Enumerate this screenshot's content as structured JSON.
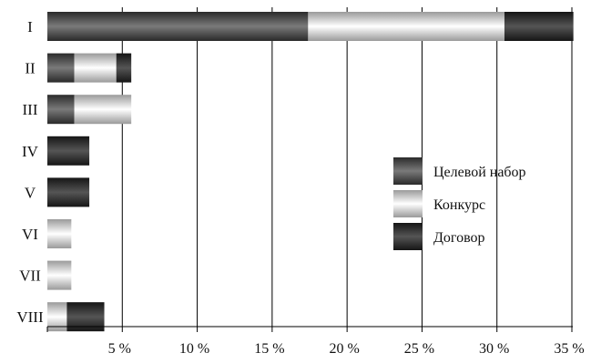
{
  "chart_data": {
    "type": "bar",
    "orientation": "horizontal",
    "stacked": true,
    "categories": [
      "I",
      "II",
      "III",
      "IV",
      "V",
      "VI",
      "VII",
      "VIII"
    ],
    "series": [
      {
        "name": "Целевой набор",
        "color": "#555555",
        "values": [
          17.4,
          1.8,
          1.8,
          0,
          0,
          0,
          0,
          0
        ]
      },
      {
        "name": "Конкурс",
        "color": "#dddddd",
        "values": [
          13.1,
          2.8,
          3.8,
          0,
          0,
          1.6,
          1.6,
          1.3
        ]
      },
      {
        "name": "Договор",
        "color": "#333333",
        "values": [
          4.6,
          1.0,
          0,
          2.8,
          2.8,
          0,
          0,
          2.5
        ]
      }
    ],
    "xlim": [
      0,
      35
    ],
    "xticks": [
      5,
      10,
      15,
      20,
      25,
      30,
      35
    ],
    "xtick_labels": [
      "5 %",
      "10 %",
      "15 %",
      "20 %",
      "25 %",
      "30 %",
      "35 %"
    ],
    "grid": "vertical",
    "legend_position": "right"
  }
}
